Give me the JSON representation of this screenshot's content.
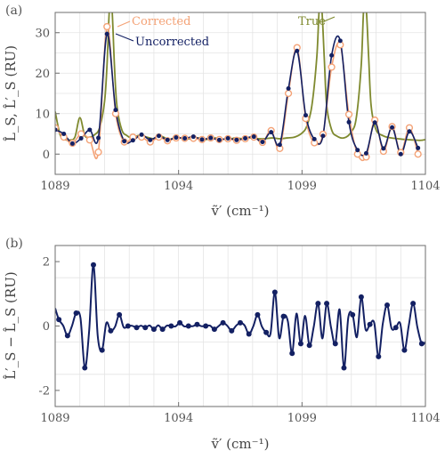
{
  "colors": {
    "true": "#7f8a2f",
    "corrected": "#f4a276",
    "uncorrected": "#132063",
    "grid": "#e4e4e4",
    "axis": "#6e6e6e"
  },
  "chart_data": [
    {
      "panel_label": "(a)",
      "type": "line",
      "xlabel": "ṽ′ (cm⁻¹)",
      "ylabel": "L̂_S, L̂′_S (RU)",
      "xlim": [
        1089,
        1104
      ],
      "ylim": [
        -5,
        35
      ],
      "xticks": [
        1089,
        1094,
        1099,
        1104
      ],
      "yticks": [
        0,
        10,
        20,
        30
      ],
      "grid": true,
      "legend_placement": "inline labels at top",
      "series": [
        {
          "name": "True",
          "style": "line",
          "x": [
            1089.0,
            1089.2,
            1089.4,
            1089.6,
            1089.8,
            1090.0,
            1090.2,
            1090.4,
            1090.6,
            1090.8,
            1091.0,
            1091.1,
            1091.2,
            1091.3,
            1091.4,
            1091.5,
            1091.7,
            1091.9,
            1092.1,
            1092.4,
            1092.7,
            1093.0,
            1093.3,
            1093.6,
            1093.9,
            1094.2,
            1094.5,
            1094.8,
            1095.1,
            1095.4,
            1095.7,
            1096.0,
            1096.3,
            1096.6,
            1096.9,
            1097.2,
            1097.5,
            1097.8,
            1098.1,
            1098.4,
            1098.7,
            1099.0,
            1099.2,
            1099.4,
            1099.6,
            1099.7,
            1099.8,
            1099.9,
            1100.0,
            1100.2,
            1100.4,
            1100.7,
            1101.0,
            1101.2,
            1101.4,
            1101.5,
            1101.6,
            1101.7,
            1101.8,
            1102.0,
            1102.3,
            1102.6,
            1102.9,
            1103.2,
            1103.5,
            1103.8,
            1104.0
          ],
          "y": [
            10.5,
            4.8,
            3.6,
            3.5,
            4.2,
            9.0,
            4.6,
            4.2,
            4.8,
            6.5,
            13.0,
            22.0,
            36.0,
            36.0,
            22.0,
            12.0,
            6.0,
            4.6,
            4.0,
            4.6,
            4.2,
            3.8,
            4.4,
            3.6,
            4.2,
            3.8,
            3.8,
            4.0,
            3.6,
            4.0,
            3.8,
            3.6,
            4.0,
            3.8,
            4.0,
            3.8,
            3.8,
            4.0,
            3.8,
            4.0,
            4.2,
            5.2,
            7.0,
            12.0,
            24.0,
            36.0,
            36.0,
            24.0,
            12.0,
            6.0,
            4.5,
            4.0,
            5.5,
            9.0,
            22.0,
            36.0,
            36.0,
            24.0,
            12.0,
            6.0,
            4.5,
            4.0,
            3.8,
            3.6,
            3.5,
            3.4,
            3.6
          ]
        },
        {
          "name": "Corrected",
          "style": "markers",
          "x": [
            1089.0,
            1089.35,
            1089.7,
            1090.05,
            1090.4,
            1090.75,
            1091.1,
            1091.45,
            1091.8,
            1092.15,
            1092.5,
            1092.85,
            1093.2,
            1093.55,
            1093.9,
            1094.25,
            1094.6,
            1094.95,
            1095.3,
            1095.65,
            1096.0,
            1096.35,
            1096.7,
            1097.05,
            1097.4,
            1097.75,
            1098.1,
            1098.45,
            1098.8,
            1099.15,
            1099.5,
            1099.85,
            1100.2,
            1100.55,
            1100.9,
            1101.25,
            1101.6,
            1101.95,
            1102.3,
            1102.65,
            1103.0,
            1103.35,
            1103.7
          ],
          "y": [
            6.5,
            4.2,
            2.7,
            5.0,
            3.5,
            0.5,
            31.5,
            10.0,
            3.0,
            4.2,
            4.2,
            3.0,
            4.2,
            3.3,
            4.0,
            3.9,
            3.9,
            3.6,
            4.0,
            3.6,
            3.8,
            3.4,
            3.8,
            4.2,
            2.9,
            5.8,
            1.4,
            15.0,
            26.3,
            8.8,
            2.8,
            4.9,
            21.5,
            27.0,
            9.8,
            0.0,
            -0.7,
            8.4,
            0.7,
            6.8,
            0.4,
            6.5,
            0.0
          ]
        },
        {
          "name": "Uncorrected",
          "style": "line+markers",
          "x": [
            1089.0,
            1089.35,
            1089.7,
            1090.05,
            1090.4,
            1090.75,
            1091.1,
            1091.45,
            1091.8,
            1092.15,
            1092.5,
            1092.85,
            1093.2,
            1093.55,
            1093.9,
            1094.25,
            1094.6,
            1094.95,
            1095.3,
            1095.65,
            1096.0,
            1096.35,
            1096.7,
            1097.05,
            1097.4,
            1097.75,
            1098.1,
            1098.45,
            1098.8,
            1099.15,
            1099.5,
            1099.85,
            1100.2,
            1100.55,
            1100.9,
            1101.25,
            1101.6,
            1101.95,
            1102.3,
            1102.65,
            1103.0,
            1103.35,
            1103.7
          ],
          "y": [
            6.0,
            5.0,
            2.6,
            3.9,
            6.0,
            4.0,
            29.7,
            10.9,
            3.2,
            3.4,
            4.8,
            3.5,
            4.5,
            3.5,
            4.1,
            3.9,
            4.3,
            3.6,
            4.0,
            3.5,
            3.9,
            3.5,
            3.9,
            4.3,
            3.0,
            5.4,
            2.3,
            16.2,
            25.5,
            9.6,
            3.7,
            4.5,
            24.4,
            28.0,
            7.9,
            1.0,
            0.2,
            7.8,
            1.4,
            6.6,
            0.0,
            5.6,
            1.5
          ]
        }
      ],
      "inline_labels": [
        "Corrected",
        "Uncorrected",
        "True"
      ]
    },
    {
      "panel_label": "(b)",
      "type": "line",
      "xlabel": "ṽ′ (cm⁻¹)",
      "ylabel": "L̂′_S − L̂_S (RU)",
      "xlim": [
        1089,
        1104
      ],
      "ylim": [
        -2.5,
        2.5
      ],
      "xticks": [
        1089,
        1094,
        1099,
        1104
      ],
      "yticks": [
        -2,
        0,
        2
      ],
      "grid": true,
      "series": [
        {
          "name": "",
          "style": "line+markers",
          "x": [
            1089.15,
            1089.5,
            1089.85,
            1090.2,
            1090.55,
            1090.9,
            1091.25,
            1091.6,
            1091.95,
            1092.3,
            1092.65,
            1093.0,
            1093.35,
            1093.7,
            1094.05,
            1094.4,
            1094.75,
            1095.1,
            1095.45,
            1095.8,
            1096.15,
            1096.5,
            1096.85,
            1097.2,
            1097.55,
            1097.9,
            1098.25,
            1098.6,
            1098.95,
            1099.3,
            1099.65,
            1100.0,
            1100.35,
            1100.7,
            1101.05,
            1101.4,
            1101.75,
            1102.1,
            1102.45,
            1102.8,
            1103.15,
            1103.5,
            1103.85
          ],
          "y": [
            0.2,
            -0.3,
            0.4,
            -1.3,
            1.9,
            -0.75,
            -0.15,
            0.35,
            0.0,
            -0.05,
            -0.05,
            -0.1,
            -0.1,
            0.0,
            0.1,
            0.0,
            0.05,
            0.0,
            -0.1,
            0.1,
            -0.15,
            0.1,
            -0.25,
            0.35,
            -0.2,
            1.05,
            0.3,
            -0.85,
            -0.55,
            -0.6,
            0.7,
            0.7,
            -0.55,
            -1.3,
            0.35,
            0.9,
            0.05,
            -0.95,
            0.65,
            -0.05,
            -0.75,
            0.7,
            -0.55
          ]
        }
      ]
    }
  ]
}
